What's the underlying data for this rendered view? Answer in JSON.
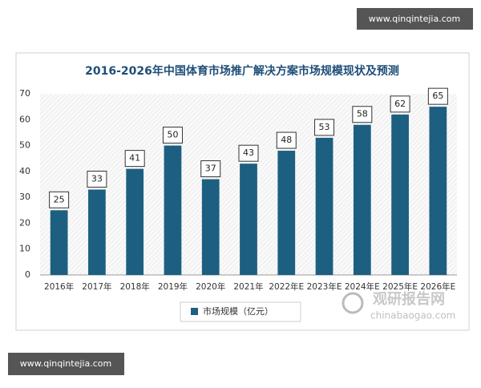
{
  "chart_data": {
    "type": "bar",
    "title": "2016-2026年中国体育市场推广解决方案市场规模现状及预测",
    "categories": [
      "2016年",
      "2017年",
      "2018年",
      "2019年",
      "2020年",
      "2021年",
      "2022年E",
      "2023年E",
      "2024年E",
      "2025年E",
      "2026年E"
    ],
    "series": [
      {
        "name": "市场规模（亿元）",
        "color": "#1d5f80",
        "values": [
          25,
          33,
          41,
          50,
          37,
          43,
          48,
          53,
          58,
          62,
          65
        ]
      }
    ],
    "ylim": [
      0,
      70
    ],
    "yticks": [
      0,
      10,
      20,
      30,
      40,
      50,
      60,
      70
    ],
    "grid": false,
    "legend": "bottom"
  },
  "watermark": {
    "site": "www.qinqintejia.com",
    "logo": "观研报告网",
    "logo_url": "chinabaogao.com"
  }
}
